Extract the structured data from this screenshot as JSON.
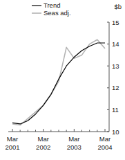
{
  "chart_data": {
    "type": "line",
    "y_label": "$b",
    "categories": [
      "Mar 2001",
      null,
      null,
      null,
      "Mar 2002",
      null,
      null,
      null,
      "Mar 2003",
      null,
      null,
      null,
      "Mar 2004"
    ],
    "series": [
      {
        "name": "Trend",
        "color": "#000000",
        "values": [
          10.4,
          10.35,
          10.5,
          10.8,
          11.2,
          11.7,
          12.4,
          13.0,
          13.4,
          13.7,
          13.9,
          14.05,
          14.05
        ]
      },
      {
        "name": "Seas adj.",
        "color": "#b4b4b4",
        "values": [
          10.35,
          10.3,
          10.6,
          10.9,
          11.2,
          11.7,
          12.3,
          13.85,
          13.35,
          13.5,
          14.0,
          14.2,
          13.8
        ]
      }
    ],
    "ylim": [
      10,
      15
    ],
    "yticks": [
      10,
      11,
      12,
      13,
      14,
      15
    ],
    "legend": "upper left",
    "grid": false
  }
}
